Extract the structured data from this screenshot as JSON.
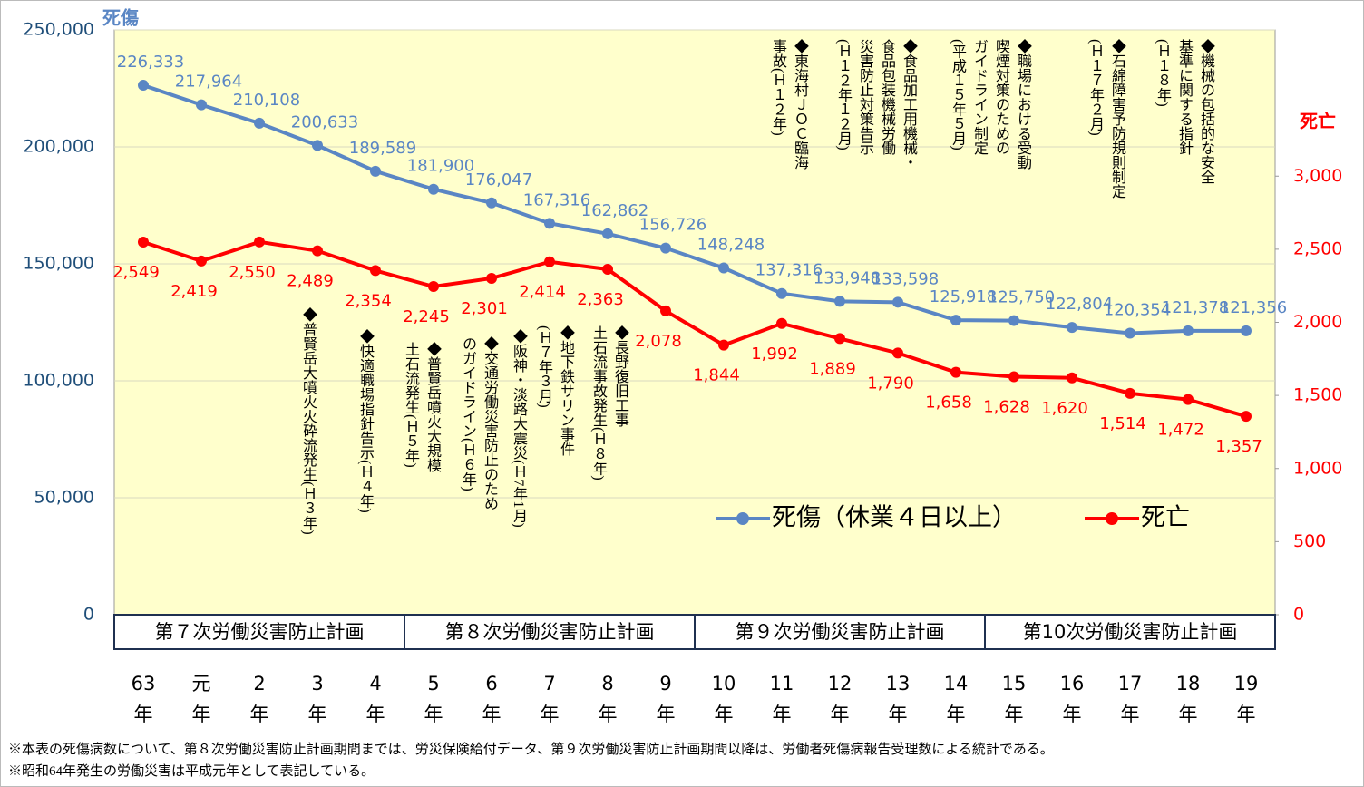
{
  "chart_data": {
    "type": "line",
    "y_label": "死傷",
    "y2_label": "死亡",
    "categories": [
      "63年",
      "元年",
      "2年",
      "3年",
      "4年",
      "5年",
      "6年",
      "7年",
      "8年",
      "9年",
      "10年",
      "11年",
      "12年",
      "13年",
      "14年",
      "15年",
      "16年",
      "17年",
      "18年",
      "19年"
    ],
    "series": [
      {
        "name": "死傷（休業４日以上）",
        "color": "#5a86c4",
        "values": [
          226333,
          217964,
          210108,
          200633,
          189589,
          181900,
          176047,
          167316,
          162862,
          156726,
          148248,
          137316,
          133948,
          133598,
          125918,
          125750,
          122804,
          120354,
          121378,
          121356
        ],
        "value_labels": [
          "226,333",
          "217,964",
          "210,108",
          "200,633",
          "189,589",
          "181,900",
          "176,047",
          "167,316",
          "162,862",
          "156,726",
          "148,248",
          "137,316",
          "133,948",
          "133,598",
          "125,918",
          "125,750",
          "122,804",
          "120,354",
          "121,378",
          "121,356"
        ]
      },
      {
        "name": "死亡",
        "color": "#ff0000",
        "axis": "y2",
        "values": [
          2549,
          2419,
          2550,
          2489,
          2354,
          2245,
          2301,
          2414,
          2363,
          2078,
          1844,
          1992,
          1889,
          1790,
          1658,
          1628,
          1620,
          1514,
          1472,
          1357
        ],
        "value_labels": [
          "2,549",
          "2,419",
          "2,550",
          "2,489",
          "2,354",
          "2,245",
          "2,301",
          "2,414",
          "2,363",
          "2,078",
          "1,844",
          "1,992",
          "1,889",
          "1,790",
          "1,658",
          "1,628",
          "1,620",
          "1,514",
          "1,472",
          "1,357"
        ]
      }
    ],
    "ylim": [
      0,
      250000
    ],
    "yticks": [
      0,
      {
        "value": 50000,
        "label": "50,000"
      },
      {
        "value": 100000,
        "label": "100,000"
      },
      {
        "value": 150000,
        "label": "150,000"
      },
      {
        "value": 200000,
        "label": "200,000"
      },
      {
        "value": 250000,
        "label": "250,000"
      }
    ],
    "y2lim": [
      0,
      4000
    ],
    "y2ticks": [
      0,
      500,
      {
        "value": 1000,
        "label": "1,000"
      },
      {
        "value": 1500,
        "label": "1,500"
      },
      {
        "value": 2000,
        "label": "2,000"
      },
      {
        "value": 2500,
        "label": "2,500"
      },
      {
        "value": 3000,
        "label": "3,000"
      }
    ],
    "grid": true,
    "plot_background": "#ffffcc",
    "plans": [
      "第７次労働災害防止計画",
      "第８次労働災害防止計画",
      "第９次労働災害防止計画",
      "第10次労働災害防止計画"
    ],
    "annotations": [
      [
        "◆普賢岳大噴火火砕流発生(Ｈ３年)"
      ],
      [
        "◆快適職場指針告示(Ｈ４年)"
      ],
      [
        "◆普賢岳噴火大規模",
        "土石流発生(Ｈ５年)"
      ],
      [
        "◆交通労働災害防止のため",
        "のガイドライン(Ｈ６年)"
      ],
      [
        "◆阪神・淡路大震災(Ｈ7年1月)"
      ],
      [
        "◆地下鉄サリン事件",
        "(Ｈ７年３月)"
      ],
      [
        "◆長野復旧工事",
        "土石流事故発生(Ｈ８年)"
      ],
      [
        "◆東海村ＪＯＣ臨海",
        "事故(Ｈ１２年)"
      ],
      [
        "◆食品加工用機械・",
        "食品包装機械労働",
        "災害防止対策告示",
        "(Ｈ１２年１２月)"
      ],
      [
        "◆職場における受動",
        "喫煙対策のための",
        "ガイドライン制定",
        "(平成１５年５月)"
      ],
      [
        "◆石綿障害予防規則制定",
        "(Ｈ１７年２月)"
      ],
      [
        "◆機械の包括的な安全",
        "基準に関する指針",
        "(Ｈ１８年)"
      ]
    ],
    "footnotes": [
      "※本表の死傷病数について、第８次労働災害防止計画期間までは、労災保険給付データ、第９次労働災害防止計画期間以降は、労働者死傷病報告受理数による統計である。",
      "※昭和64年発生の労働災害は平成元年として表記している。"
    ]
  }
}
